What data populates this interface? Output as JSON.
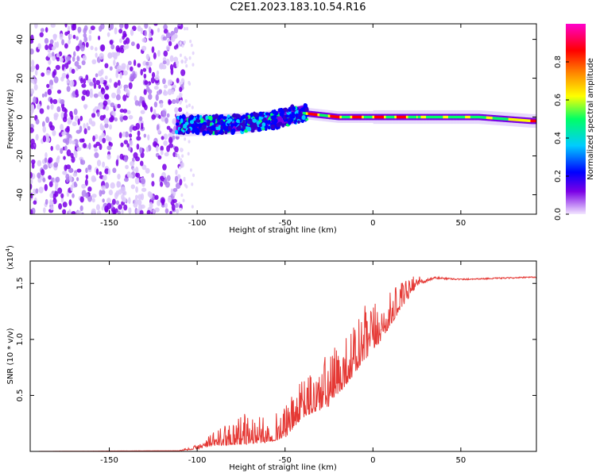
{
  "title": "C2E1.2023.183.10.54.R16",
  "chart_data": [
    {
      "type": "heatmap",
      "xlabel": "Height of straight line (km)",
      "ylabel": "Frequency (Hz)",
      "xlim": [
        -195,
        93
      ],
      "ylim": [
        -50,
        48
      ],
      "xticks": [
        -150,
        -100,
        -50,
        0,
        50
      ],
      "yticks": [
        -40,
        -20,
        0,
        20,
        40
      ],
      "colorbar": {
        "label": "Normalized spectral amplitude",
        "range": [
          0.0,
          1.0
        ],
        "ticks": [
          0.0,
          0.2,
          0.4,
          0.6,
          0.8
        ],
        "colors": [
          "#f2e6ff",
          "#7a00e6",
          "#0000ff",
          "#00ccff",
          "#00ff66",
          "#ffff00",
          "#ff8800",
          "#ff0000",
          "#ff00cc"
        ]
      },
      "noise_region_x": [
        -195,
        -112
      ],
      "ridge": [
        {
          "x": -110,
          "f": -4
        },
        {
          "x": -90,
          "f": -4
        },
        {
          "x": -70,
          "f": -3
        },
        {
          "x": -55,
          "f": -1
        },
        {
          "x": -40,
          "f": 2
        },
        {
          "x": -20,
          "f": 0
        },
        {
          "x": 0,
          "f": 0
        },
        {
          "x": 30,
          "f": 0
        },
        {
          "x": 60,
          "f": 0
        },
        {
          "x": 90,
          "f": -2
        }
      ]
    },
    {
      "type": "line",
      "xlabel": "Height of straight line (km)",
      "ylabel": "SNR (10 * v/v)",
      "yscale_label": "(x10",
      "yscale_exp": "4",
      "yscale_close": ")",
      "xlim": [
        -195,
        93
      ],
      "ylim": [
        0,
        17000
      ],
      "xticks": [
        -150,
        -100,
        -50,
        0,
        50
      ],
      "yticks": [
        5000,
        10000,
        15000
      ],
      "ytick_labels": [
        "0.5",
        "1.0",
        "1.5"
      ],
      "color": "#e53935",
      "envelope": [
        {
          "x": -195,
          "y": 0
        },
        {
          "x": -110,
          "y": 100
        },
        {
          "x": -100,
          "y": 600
        },
        {
          "x": -90,
          "y": 1800
        },
        {
          "x": -75,
          "y": 3500
        },
        {
          "x": -60,
          "y": 3000
        },
        {
          "x": -50,
          "y": 4000
        },
        {
          "x": -40,
          "y": 6500
        },
        {
          "x": -25,
          "y": 9000
        },
        {
          "x": -15,
          "y": 10500
        },
        {
          "x": -5,
          "y": 13000
        },
        {
          "x": 5,
          "y": 13500
        },
        {
          "x": 15,
          "y": 15000
        },
        {
          "x": 25,
          "y": 15800
        },
        {
          "x": 35,
          "y": 15900
        },
        {
          "x": 50,
          "y": 15600
        },
        {
          "x": 93,
          "y": 15800
        }
      ],
      "baseline": [
        {
          "x": -195,
          "y": 0
        },
        {
          "x": -110,
          "y": 50
        },
        {
          "x": -100,
          "y": 200
        },
        {
          "x": -90,
          "y": 500
        },
        {
          "x": -75,
          "y": 600
        },
        {
          "x": -60,
          "y": 800
        },
        {
          "x": -50,
          "y": 1200
        },
        {
          "x": -40,
          "y": 3000
        },
        {
          "x": -25,
          "y": 4000
        },
        {
          "x": -15,
          "y": 6000
        },
        {
          "x": -5,
          "y": 8000
        },
        {
          "x": 5,
          "y": 10000
        },
        {
          "x": 15,
          "y": 12500
        },
        {
          "x": 25,
          "y": 14800
        },
        {
          "x": 35,
          "y": 15400
        },
        {
          "x": 50,
          "y": 15300
        },
        {
          "x": 93,
          "y": 15500
        }
      ]
    }
  ]
}
